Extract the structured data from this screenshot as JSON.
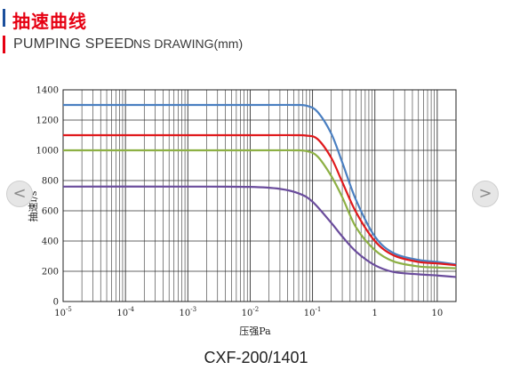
{
  "header": {
    "title": "抽速曲线",
    "subtitle": "PUMPING SPEED",
    "subtitle_note": "NS DRAWING(mm)"
  },
  "nav": {
    "prev_glyph": "<",
    "next_glyph": ">"
  },
  "caption": "CXF-200/1401",
  "colors": {
    "title_red": "#e60012",
    "title_blue": "#1b4f9c",
    "series_blue": "#4a7fc1",
    "series_red": "#e0191c",
    "series_green": "#8db044",
    "series_purple": "#6a4c9c"
  },
  "chart_data": {
    "type": "line",
    "xscale": "log",
    "xlabel": "压强Pa",
    "ylabel": "抽速l/s",
    "xlim": [
      1e-05,
      20
    ],
    "ylim": [
      0,
      1400
    ],
    "grid": true,
    "xticks": [
      {
        "value": 1e-05,
        "base": "10",
        "exp": "-5"
      },
      {
        "value": 0.0001,
        "base": "10",
        "exp": "-4"
      },
      {
        "value": 0.001,
        "base": "10",
        "exp": "-3"
      },
      {
        "value": 0.01,
        "base": "10",
        "exp": "-2"
      },
      {
        "value": 0.1,
        "base": "10",
        "exp": "-1"
      },
      {
        "value": 1,
        "base": "1",
        "exp": ""
      },
      {
        "value": 10,
        "base": "10",
        "exp": ""
      }
    ],
    "yticks": [
      0,
      200,
      400,
      600,
      800,
      1000,
      1200,
      1400
    ],
    "series": [
      {
        "color": "#4a7fc1",
        "x": [
          1e-05,
          0.01,
          0.05,
          0.08,
          0.12,
          0.2,
          0.3,
          0.5,
          1,
          2,
          5,
          10,
          20
        ],
        "y": [
          1300,
          1300,
          1300,
          1295,
          1255,
          1110,
          920,
          670,
          430,
          320,
          275,
          262,
          245
        ]
      },
      {
        "color": "#e0191c",
        "x": [
          1e-05,
          0.01,
          0.05,
          0.08,
          0.12,
          0.2,
          0.3,
          0.5,
          1,
          2,
          5,
          10,
          20
        ],
        "y": [
          1100,
          1100,
          1100,
          1097,
          1075,
          950,
          790,
          590,
          400,
          305,
          262,
          252,
          240
        ]
      },
      {
        "color": "#8db044",
        "x": [
          1e-05,
          0.01,
          0.05,
          0.08,
          0.12,
          0.2,
          0.3,
          0.5,
          1,
          2,
          5,
          10,
          20
        ],
        "y": [
          1000,
          1000,
          1000,
          995,
          960,
          830,
          690,
          490,
          340,
          265,
          232,
          225,
          220
        ]
      },
      {
        "color": "#6a4c9c",
        "x": [
          1e-05,
          0.001,
          0.01,
          0.03,
          0.06,
          0.1,
          0.2,
          0.3,
          0.5,
          1,
          2,
          5,
          10,
          20
        ],
        "y": [
          760,
          760,
          758,
          745,
          715,
          660,
          520,
          430,
          330,
          240,
          195,
          180,
          172,
          162
        ]
      }
    ]
  }
}
